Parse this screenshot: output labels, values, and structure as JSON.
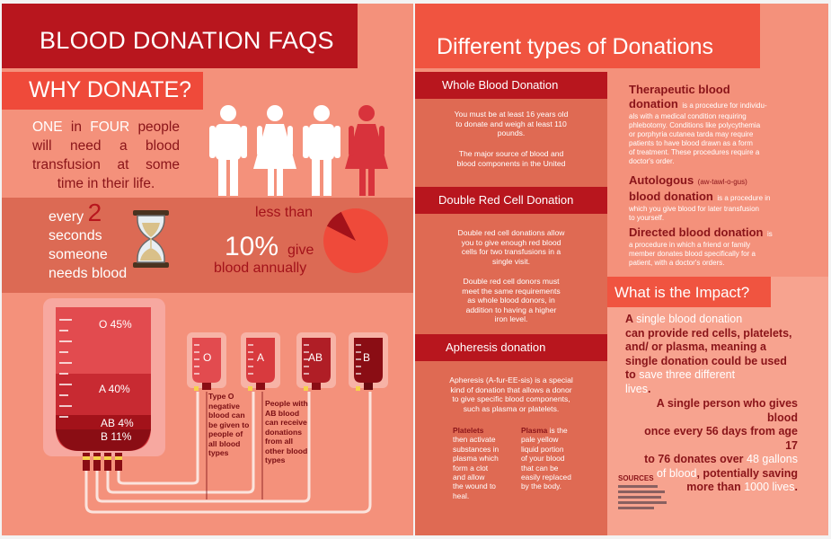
{
  "left": {
    "title": "BLOOD DONATION FAQS",
    "why_donate": "WHY DONATE?",
    "stat1": {
      "w1": "ONE",
      "w2": "in",
      "w3": "FOUR",
      "w4": "people",
      "rest": "will need a blood transfusion at some time in their life."
    },
    "stat2": {
      "pre": "every",
      "num": "2",
      "rest1": "seconds",
      "rest2": "someone",
      "rest3": "needs blood"
    },
    "stat3": {
      "less_than": "less than",
      "pct": "10%",
      "give": "give",
      "annually": "blood annually",
      "share": 0.1
    },
    "big_bag": {
      "o": "O 45%",
      "a": "A 40%",
      "ab": "AB 4%",
      "b": "B 11%",
      "shares": {
        "O": 45,
        "A": 40,
        "AB": 4,
        "B": 11
      }
    },
    "small_bags": [
      "O",
      "A",
      "AB",
      "B"
    ],
    "note_o": [
      "Type O",
      "negative",
      "blood can",
      "be given to",
      "people of",
      "all blood",
      "types"
    ],
    "note_ab": [
      "People with",
      "AB blood",
      "can receive",
      "donations",
      "from all",
      "other blood",
      "types"
    ],
    "colors": {
      "title_red": "#b8161e",
      "accent": "#ef4a3a",
      "bg": "#f4917b",
      "band": "#dc6a54"
    }
  },
  "right": {
    "title": "Different types of Donations",
    "whole": {
      "tab": "Whole Blood Donation",
      "p1": [
        "You must be at least 16 years old",
        "to donate and weigh at least 110",
        "pounds."
      ],
      "p2": [
        "The major source of blood and",
        "blood components in the United"
      ]
    },
    "double": {
      "tab": "Double Red Cell Donation",
      "p1": [
        "Double red cell donations allow",
        "you to give enough red blood",
        "cells for two transfusions in a",
        "single visit."
      ],
      "p2": [
        "Double red cell donors must",
        "meet the same requirements",
        "as whole blood donors, in",
        "addition to having a higher",
        "iron level."
      ]
    },
    "apheresis": {
      "tab": "Apheresis donation",
      "p1": [
        "Apheresis (A-fur-EE-sis) is a special",
        "kind of donation that allows a donor",
        "to give specific blood components,",
        "such as plasma or platelets."
      ],
      "platelets": {
        "term": "Platelets",
        "lines": [
          "then activate",
          "substances in",
          "plasma which",
          "form a clot",
          "and allow",
          "the wound to",
          "heal."
        ]
      },
      "plasma": {
        "term": "Plasma",
        "first": "is the",
        "lines": [
          "pale yellow",
          "liquid portion",
          "of your blood",
          "that can be",
          "easily replaced",
          "by the body."
        ]
      }
    },
    "therapeutic": {
      "h1": "Therapeutic blood",
      "h2": "donation",
      "s1": "is a procedure for individu-",
      "lines": [
        "als with a medical condition requiring",
        "phlebotomy. Conditions like polycythemia",
        "or porphyria cutanea tarda may require",
        "patients to have blood drawn as a form",
        "of treatment. These procedures require a",
        "doctor's order."
      ]
    },
    "autologous": {
      "h1": "Autologous",
      "pron": "(aw-tawl-o-gus)",
      "h2": "blood donation",
      "s1": "is a procedure in",
      "lines": [
        "which you give blood for later transfusion",
        "to yourself."
      ]
    },
    "directed": {
      "h1": "Directed blood donation",
      "s1": "is",
      "lines": [
        "a procedure in which a friend or family",
        "member donates blood specifically for a",
        "patient, with a doctor's orders."
      ]
    },
    "impact": {
      "tab": "What is the Impact?",
      "p1": {
        "a": "A",
        "b": "single blood donation",
        "l2": "can provide red cells, platelets,",
        "l3": "and/ or plasma, meaning a",
        "l4": "single donation could be used",
        "l5a": "to",
        "l5b": "save three different",
        "l6a": "lives",
        "l6b": "."
      },
      "p2": {
        "l1": "A single person who gives blood",
        "l2": "once every 56 days from age 17",
        "l3a": "to 76 donates over",
        "l3b": "48 gallons",
        "l4a": "of blood",
        "l4b": ", potentially saving",
        "l5a": "more than",
        "l5b": "1000 lives",
        "l5c": "."
      },
      "sources": "SOURCES"
    },
    "colors": {
      "tab_red": "#b8161e",
      "mid": "#df6a53",
      "impact_bg": "#f7a38f"
    }
  }
}
